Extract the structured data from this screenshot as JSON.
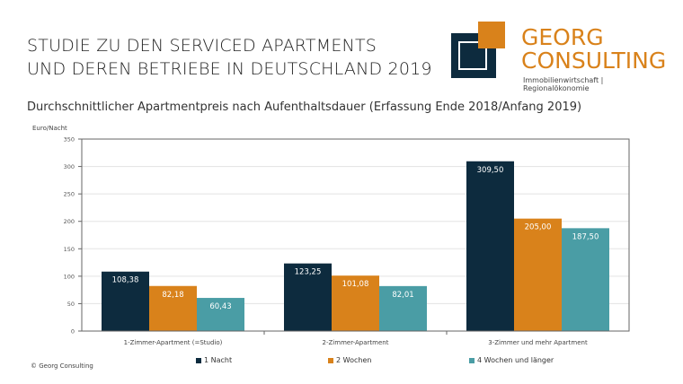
{
  "header": {
    "title_line1": "STUDIE ZU DEN SERVICED APARTMENTS",
    "title_line2": "UND DEREN BETRIEBE IN DEUTSCHLAND 2019",
    "logo": {
      "line1": "GEORG",
      "line2": "CONSULTING",
      "tagline": "Immobilienwirtschaft | Regionalökonomie"
    }
  },
  "subtitle": "Durchschnittlicher Apartmentpreis nach Aufenthaltsdauer (Erfassung Ende 2018/Anfang 2019)",
  "footer": {
    "copyright": "© Georg Consulting"
  },
  "chart_data": {
    "type": "bar",
    "ylabel": "Euro/Nacht",
    "ylim": [
      0,
      350
    ],
    "yticks": [
      "0",
      "50",
      "100",
      "150",
      "200",
      "250",
      "300",
      "350"
    ],
    "grid": true,
    "legend_position": "bottom",
    "categories": [
      "1-Zimmer-Apartment (=Studio)",
      "2-Zimmer-Apartment",
      "3-Zimmer und mehr Apartment"
    ],
    "series": [
      {
        "name": "1 Nacht",
        "color": "#0d2b3e",
        "values": [
          108.38,
          123.25,
          309.5
        ],
        "labels": [
          "108,38",
          "123,25",
          "309,50"
        ]
      },
      {
        "name": "2 Wochen",
        "color": "#d9821b",
        "values": [
          82.18,
          101.08,
          205.0
        ],
        "labels": [
          "82,18",
          "101,08",
          "205,00"
        ]
      },
      {
        "name": "4 Wochen und länger",
        "color": "#4a9da5",
        "values": [
          60.43,
          82.01,
          187.5
        ],
        "labels": [
          "60,43",
          "82,01",
          "187,50"
        ]
      }
    ]
  }
}
